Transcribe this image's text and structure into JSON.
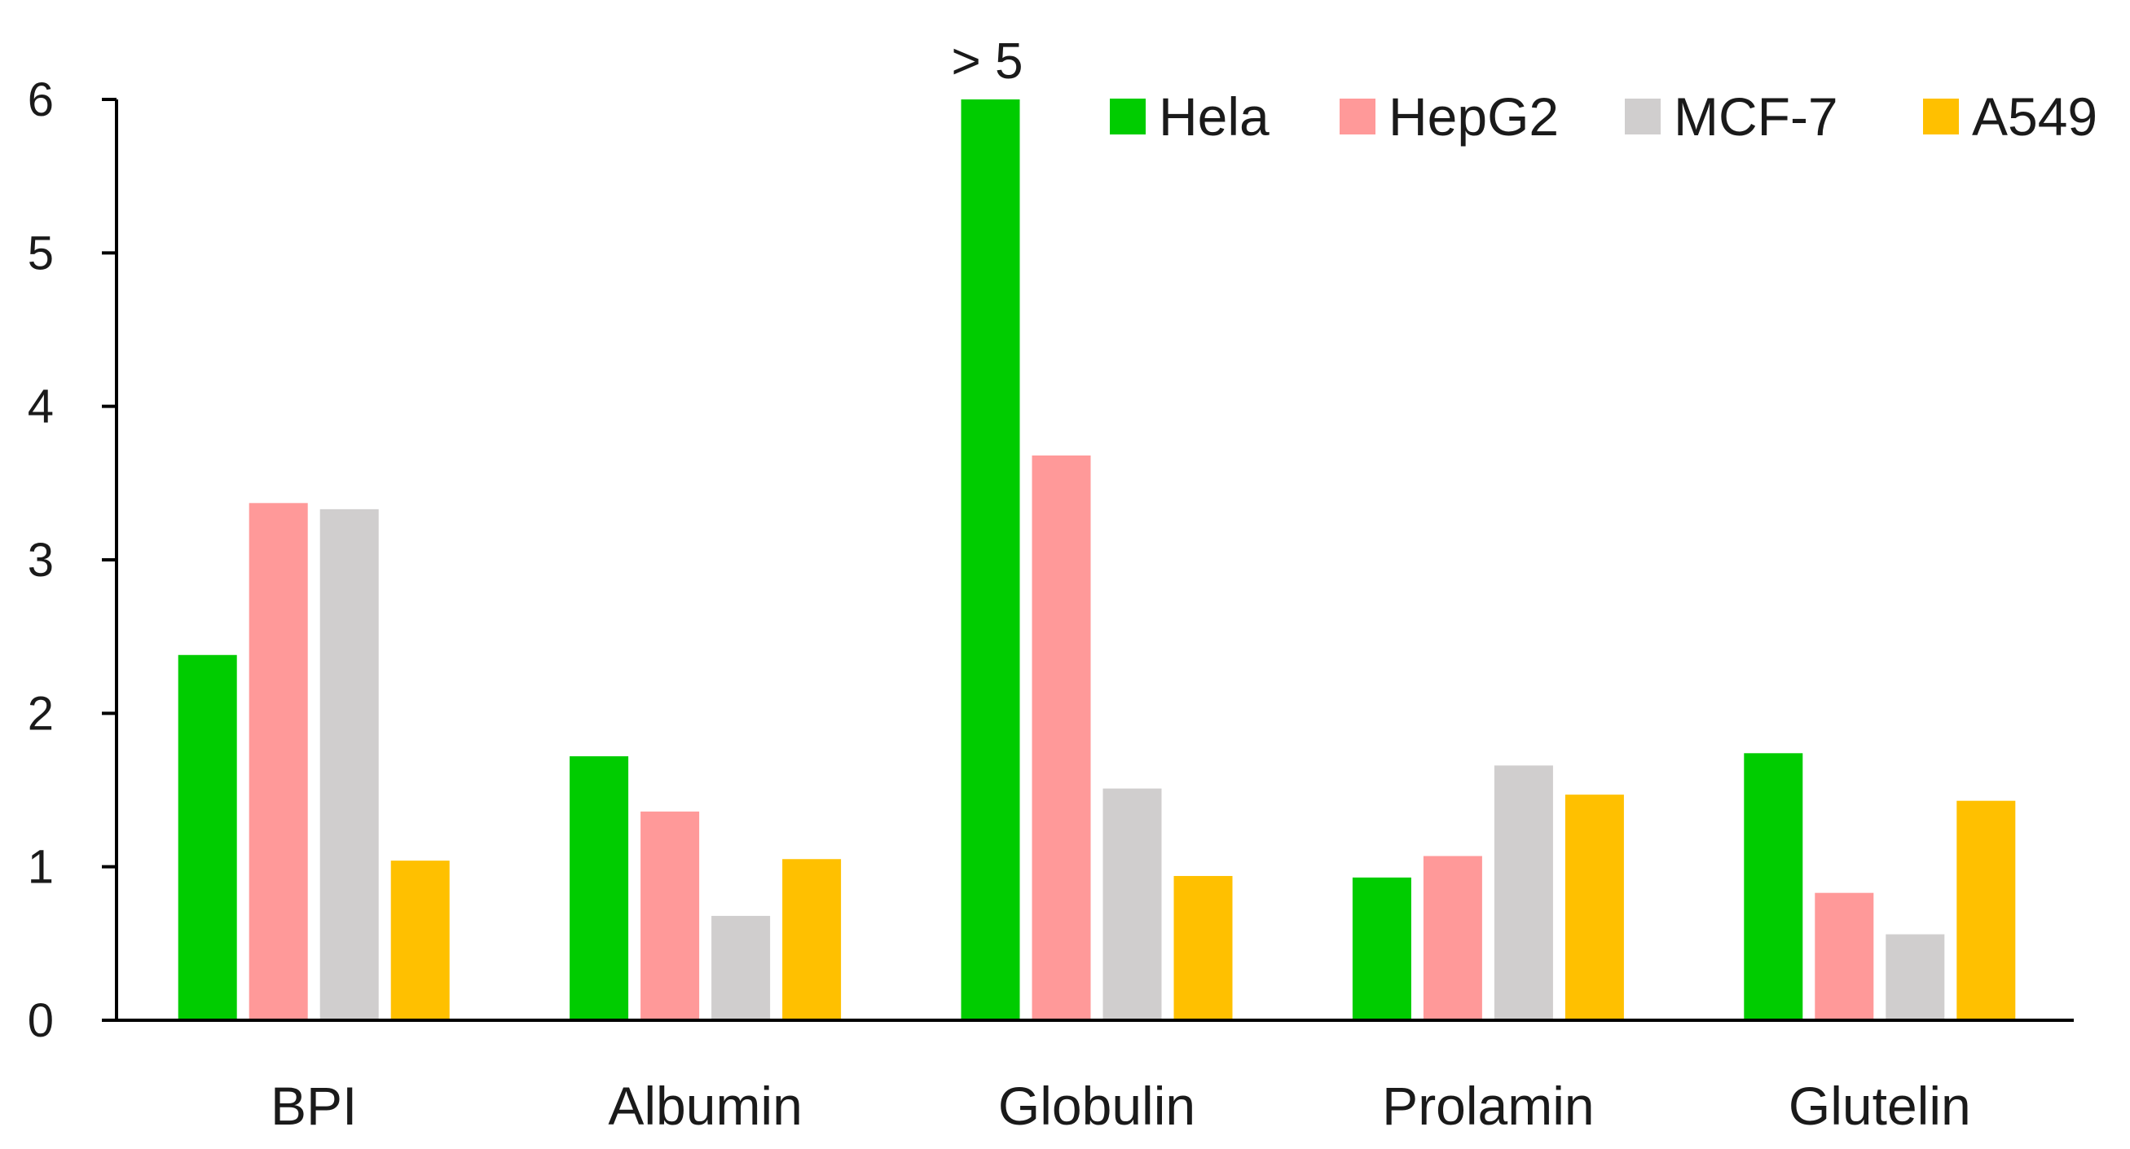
{
  "chart_data": {
    "type": "bar",
    "title": "",
    "xlabel": "",
    "ylabel": "",
    "categories": [
      "BPI",
      "Albumin",
      "Globulin",
      "Prolamin",
      "Glutelin"
    ],
    "series": [
      {
        "name": "Hela",
        "color": "#00cc00",
        "values": [
          2.38,
          1.72,
          6.0,
          0.93,
          1.74
        ]
      },
      {
        "name": "HepG2",
        "color": "#ff9999",
        "values": [
          3.37,
          1.36,
          3.68,
          1.07,
          0.83
        ]
      },
      {
        "name": "MCF-7",
        "color": "#d0cece",
        "values": [
          3.33,
          0.68,
          1.51,
          1.66,
          0.56
        ]
      },
      {
        "name": "A549",
        "color": "#ffc000",
        "values": [
          1.04,
          1.05,
          0.94,
          1.47,
          1.43
        ]
      }
    ],
    "ylim": [
      0,
      6
    ],
    "yticks": [
      "0",
      "1",
      "2",
      "3",
      "4",
      "5",
      "6"
    ],
    "grid": false,
    "legend_position": "top-right",
    "annotations": [
      {
        "text": "> 5",
        "category": "Globulin",
        "series": "Hela"
      }
    ]
  }
}
